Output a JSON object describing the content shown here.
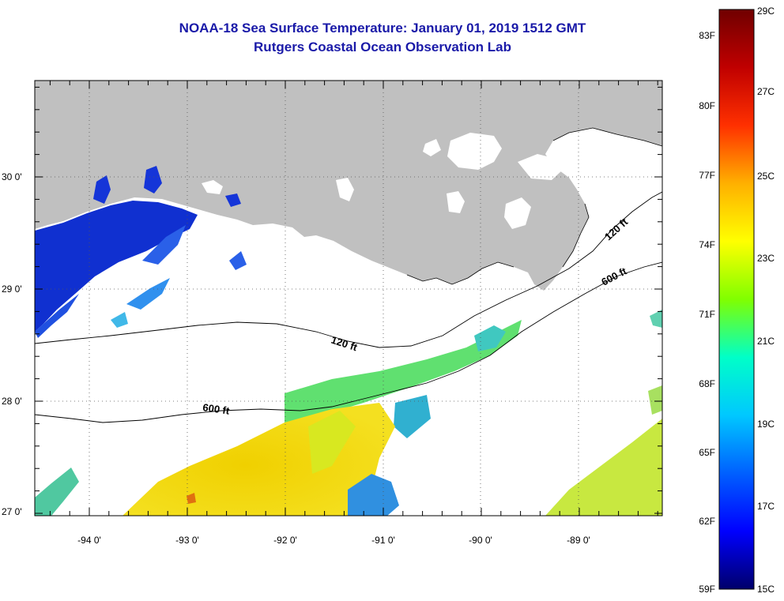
{
  "title": {
    "line1": "NOAA-18 Sea Surface Temperature:  January 01, 2019 1512 GMT",
    "line2": "Rutgers Coastal Ocean Observation Lab"
  },
  "map": {
    "lat_labels": [
      "30 0'",
      "29 0'",
      "28 0'",
      "27 0'"
    ],
    "lon_labels": [
      "-94 0'",
      "-93 0'",
      "-92 0'",
      "-91 0'",
      "-90 0'",
      "-89 0'"
    ],
    "contour_labels": [
      "120 ft",
      "120 ft",
      "600 ft",
      "600 ft"
    ],
    "colors": {
      "land": "#c0c0c0",
      "ocean_no_data": "#ffffff",
      "grid": "#555555"
    }
  },
  "colorbar": {
    "fahrenheit_labels": [
      "83F",
      "80F",
      "77F",
      "74F",
      "71F",
      "68F",
      "65F",
      "62F",
      "59F"
    ],
    "celsius_labels": [
      "29C",
      "27C",
      "25C",
      "23C",
      "21C",
      "19C",
      "17C",
      "15C"
    ],
    "range_c": [
      15,
      29
    ],
    "gradient": [
      "#00006a",
      "#0000ff",
      "#0060ff",
      "#00c8ff",
      "#00ffc8",
      "#80ff00",
      "#ffff00",
      "#ffb000",
      "#ff3000",
      "#c00000",
      "#700000"
    ]
  }
}
